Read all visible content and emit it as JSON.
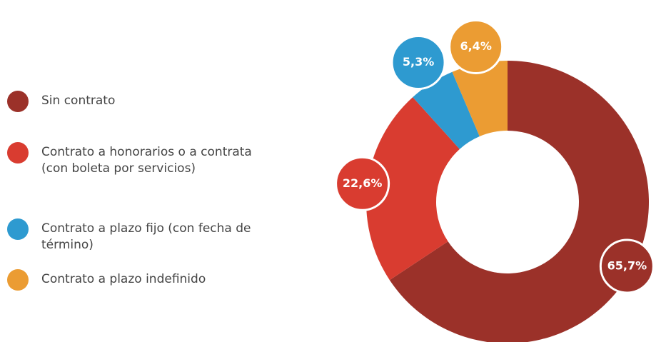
{
  "chart_data": {
    "type": "donut",
    "categories": [
      "Sin contrato",
      "Contrato a honorarios o a contrata (con boleta por servicios)",
      "Contrato a plazo fijo (con fecha de término)",
      "Contrato a plazo indefinido"
    ],
    "values": [
      65.7,
      22.6,
      5.3,
      6.4
    ],
    "value_labels": [
      "65,7%",
      "22,6%",
      "5,3%",
      "6,4%"
    ],
    "colors": [
      "#9b3129",
      "#d93c30",
      "#2e9ad0",
      "#eb9c33"
    ],
    "legend": "left"
  }
}
